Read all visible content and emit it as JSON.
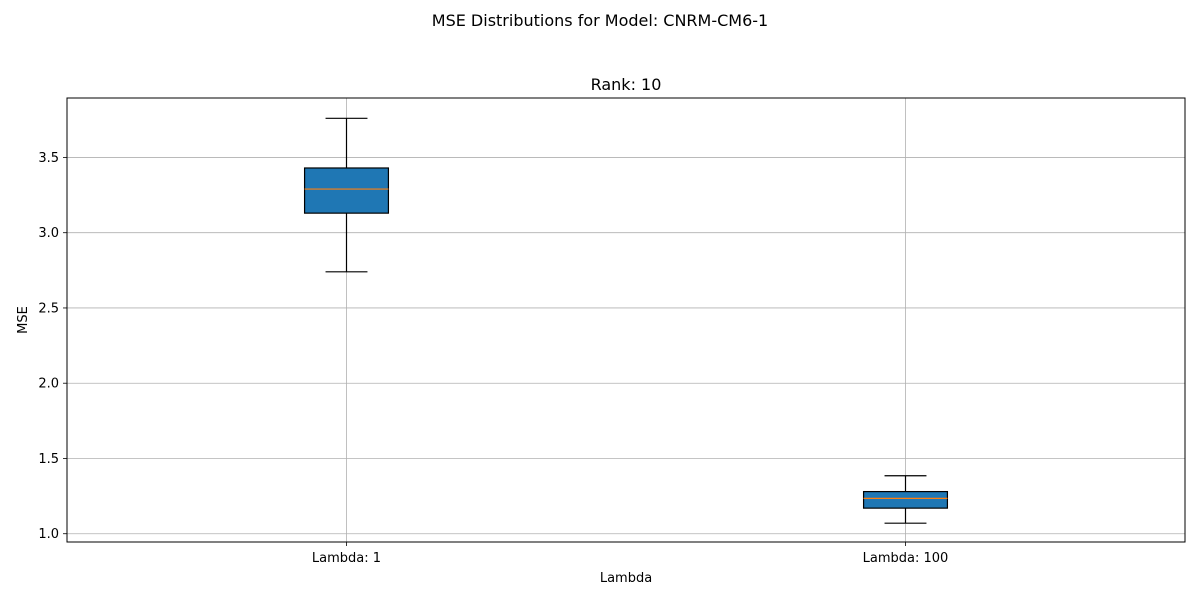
{
  "chart_data": {
    "type": "box",
    "suptitle": "MSE Distributions for Model: CNRM-CM6-1",
    "title": "Rank: 10",
    "xlabel": "Lambda",
    "ylabel": "MSE",
    "categories": [
      "Lambda: 1",
      "Lambda: 100"
    ],
    "boxes": [
      {
        "whisker_low": 2.74,
        "q1": 3.13,
        "median": 3.29,
        "q3": 3.43,
        "whisker_high": 3.76
      },
      {
        "whisker_low": 1.07,
        "q1": 1.17,
        "median": 1.235,
        "q3": 1.28,
        "whisker_high": 1.385
      }
    ],
    "ylim": [
      0.945,
      3.895
    ],
    "yticks": [
      1.0,
      1.5,
      2.0,
      2.5,
      3.0,
      3.5
    ],
    "ytick_labels": [
      "1.0",
      "1.5",
      "2.0",
      "2.5",
      "3.0",
      "3.5"
    ],
    "grid": true,
    "colors": {
      "box_fill": "#1f77b4",
      "median": "#ff7f0e",
      "grid": "#b0b0b0",
      "edge": "#000000"
    }
  }
}
